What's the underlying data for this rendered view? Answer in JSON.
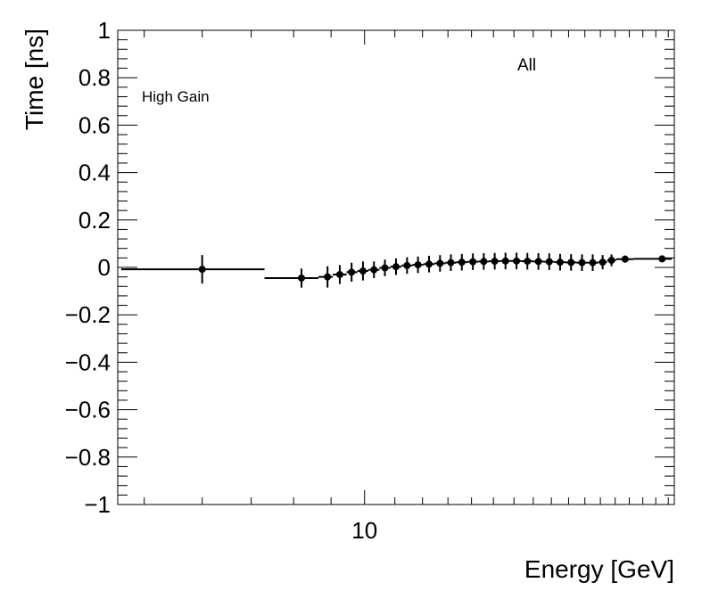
{
  "chart_data": {
    "type": "scatter",
    "title": "",
    "xlabel": "Energy [GeV]",
    "ylabel": "Time [ns]",
    "xscale": "log",
    "xlim": [
      4.6,
      26.5
    ],
    "ylim": [
      -1,
      1
    ],
    "x_tick_labels": [
      {
        "value": 10,
        "label": "10"
      }
    ],
    "y_ticks": [
      -1,
      -0.8,
      -0.6,
      -0.4,
      -0.2,
      0,
      0.2,
      0.4,
      0.6,
      0.8,
      1
    ],
    "y_tick_labels": [
      "−1",
      "−0.8",
      "−0.6",
      "−0.4",
      "−0.2",
      "0",
      "0.2",
      "0.4",
      "0.6",
      "0.8",
      "1"
    ],
    "annotations": [
      {
        "text": "High Gain",
        "position": "top-left"
      },
      {
        "text": "All",
        "position": "top-right"
      }
    ],
    "series": [
      {
        "name": "All",
        "points": [
          {
            "x": 6.0,
            "y": -0.008,
            "xlo": 4.65,
            "xhi": 7.3,
            "yerr": 0.06
          },
          {
            "x": 8.2,
            "y": -0.045,
            "xlo": 7.3,
            "xhi": 8.65,
            "yerr": 0.04
          },
          {
            "x": 8.9,
            "y": -0.04,
            "xlo": 8.65,
            "xhi": 9.05,
            "yerr": 0.045
          },
          {
            "x": 9.25,
            "y": -0.03,
            "xlo": 9.05,
            "xhi": 9.45,
            "yerr": 0.04
          },
          {
            "x": 9.6,
            "y": -0.02,
            "xlo": 9.45,
            "xhi": 9.78,
            "yerr": 0.04
          },
          {
            "x": 9.95,
            "y": -0.015,
            "xlo": 9.78,
            "xhi": 10.12,
            "yerr": 0.04
          },
          {
            "x": 10.3,
            "y": -0.01,
            "xlo": 10.12,
            "xhi": 10.48,
            "yerr": 0.035
          },
          {
            "x": 10.66,
            "y": -0.002,
            "xlo": 10.48,
            "xhi": 10.85,
            "yerr": 0.035
          },
          {
            "x": 11.04,
            "y": 0.003,
            "xlo": 10.85,
            "xhi": 11.23,
            "yerr": 0.035
          },
          {
            "x": 11.43,
            "y": 0.008,
            "xlo": 11.23,
            "xhi": 11.63,
            "yerr": 0.035
          },
          {
            "x": 11.83,
            "y": 0.011,
            "xlo": 11.63,
            "xhi": 12.04,
            "yerr": 0.035
          },
          {
            "x": 12.25,
            "y": 0.014,
            "xlo": 12.04,
            "xhi": 12.46,
            "yerr": 0.035
          },
          {
            "x": 12.68,
            "y": 0.017,
            "xlo": 12.46,
            "xhi": 12.9,
            "yerr": 0.035
          },
          {
            "x": 13.12,
            "y": 0.02,
            "xlo": 12.9,
            "xhi": 13.35,
            "yerr": 0.035
          },
          {
            "x": 13.58,
            "y": 0.022,
            "xlo": 13.35,
            "xhi": 13.82,
            "yerr": 0.035
          },
          {
            "x": 14.06,
            "y": 0.024,
            "xlo": 13.82,
            "xhi": 14.3,
            "yerr": 0.035
          },
          {
            "x": 14.55,
            "y": 0.025,
            "xlo": 14.3,
            "xhi": 14.8,
            "yerr": 0.035
          },
          {
            "x": 15.06,
            "y": 0.026,
            "xlo": 14.8,
            "xhi": 15.32,
            "yerr": 0.035
          },
          {
            "x": 15.58,
            "y": 0.027,
            "xlo": 15.32,
            "xhi": 15.85,
            "yerr": 0.035
          },
          {
            "x": 16.13,
            "y": 0.027,
            "xlo": 15.85,
            "xhi": 16.4,
            "yerr": 0.035
          },
          {
            "x": 16.69,
            "y": 0.026,
            "xlo": 16.4,
            "xhi": 16.98,
            "yerr": 0.035
          },
          {
            "x": 17.28,
            "y": 0.025,
            "xlo": 16.98,
            "xhi": 17.57,
            "yerr": 0.035
          },
          {
            "x": 17.88,
            "y": 0.024,
            "xlo": 17.57,
            "xhi": 18.18,
            "yerr": 0.035
          },
          {
            "x": 18.5,
            "y": 0.022,
            "xlo": 18.18,
            "xhi": 18.82,
            "yerr": 0.035
          },
          {
            "x": 19.15,
            "y": 0.021,
            "xlo": 18.82,
            "xhi": 19.48,
            "yerr": 0.035
          },
          {
            "x": 19.82,
            "y": 0.02,
            "xlo": 19.48,
            "xhi": 20.16,
            "yerr": 0.035
          },
          {
            "x": 20.5,
            "y": 0.02,
            "xlo": 20.16,
            "xhi": 20.86,
            "yerr": 0.035
          },
          {
            "x": 21.15,
            "y": 0.022,
            "xlo": 20.86,
            "xhi": 21.45,
            "yerr": 0.03
          },
          {
            "x": 21.75,
            "y": 0.03,
            "xlo": 21.45,
            "xhi": 22.05,
            "yerr": 0.025
          },
          {
            "x": 22.7,
            "y": 0.035,
            "xlo": 22.05,
            "xhi": 23.3,
            "yerr": 0.015
          },
          {
            "x": 25.5,
            "y": 0.036,
            "xlo": 23.3,
            "xhi": 26.3,
            "yerr": 0.01
          }
        ]
      }
    ]
  }
}
